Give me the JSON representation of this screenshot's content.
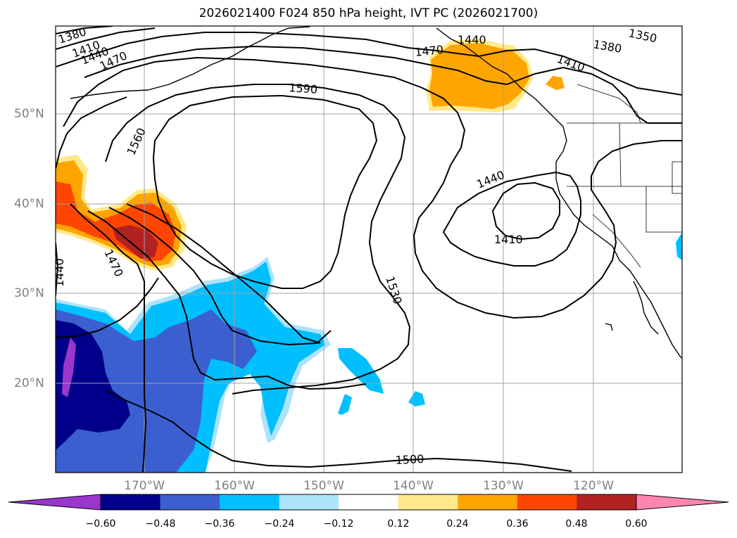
{
  "title": "2026021400 F024 850 hPa height, IVT PC (2026021700)",
  "lat_labels": [
    "50°N",
    "40°N",
    "30°N",
    "20°N"
  ],
  "lon_labels": [
    "170°W",
    "160°W",
    "150°W",
    "140°W",
    "130°W",
    "120°W"
  ],
  "contour_labels": [
    "1380",
    "1410",
    "1440",
    "1470",
    "1590",
    "1560",
    "1470",
    "1440",
    "1470",
    "1410",
    "1350",
    "1380",
    "1440",
    "1410",
    "1530",
    "1500"
  ],
  "colorbar": {
    "ticks": [
      "−0.60",
      "−0.48",
      "−0.36",
      "−0.24",
      "−0.12",
      "0.12",
      "0.24",
      "0.36",
      "0.48",
      "0.60"
    ],
    "colors": [
      "#9a36cc",
      "#00008b",
      "#3b5fcf",
      "#00bfff",
      "#ade3fb",
      "#ffffff",
      "#ffe98a",
      "#ffa500",
      "#ff4500",
      "#b22222",
      "#ff85b0"
    ]
  },
  "colors": {
    "contour": "#000000",
    "grid": "#a0a0a0",
    "label": "#808080"
  }
}
